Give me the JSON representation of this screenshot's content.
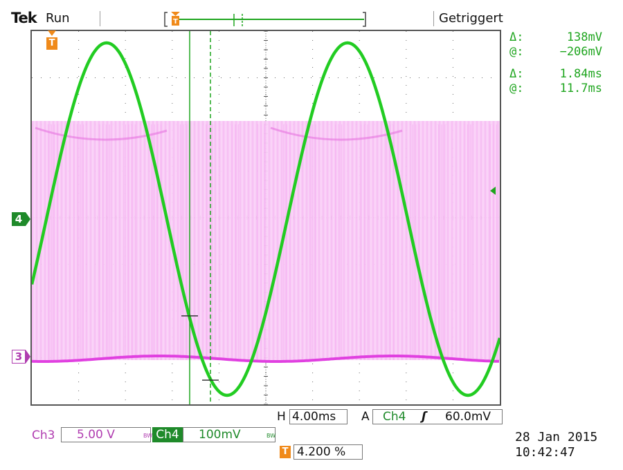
{
  "header": {
    "brand": "Tek",
    "acq_state": "Run",
    "trigger_status": "Getriggert"
  },
  "readouts": {
    "delta_v_label": "Δ:",
    "delta_v": "138mV",
    "at_v_label": "@:",
    "at_v": "−206mV",
    "delta_t_label": "Δ:",
    "delta_t": "1.84ms",
    "at_t_label": "@:",
    "at_t": "11.7ms"
  },
  "channels": {
    "ch4_marker": "4",
    "ch3_marker": "3",
    "ch3_label": "Ch3",
    "ch3_scale": "5.00 V",
    "ch4_label": "Ch4",
    "ch4_scale": "100mV",
    "bw_label": "BW"
  },
  "horizontal": {
    "h_label": "H",
    "h_scale": "4.00ms",
    "acq_mode": "A",
    "trig_source": "Ch4",
    "trig_slope": "ʃ",
    "trig_level": "60.0mV"
  },
  "trigger_marker": {
    "symbol": "T",
    "position": "4.200 %"
  },
  "timestamp": {
    "date": "28 Jan  2015",
    "time": "10:42:47"
  },
  "colors": {
    "ch4": "#22cc22",
    "ch3": "#e040e0",
    "trigger": "#f08a1a"
  }
}
